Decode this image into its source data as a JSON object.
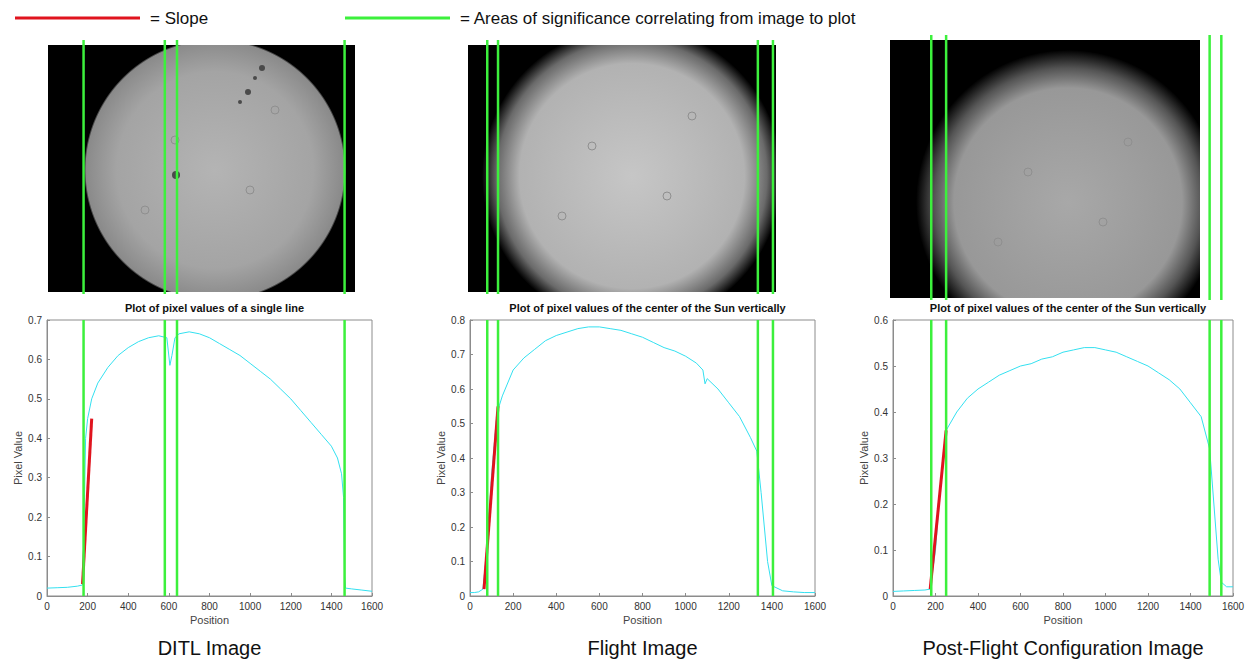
{
  "figure_key": [
    {
      "label": "= Slope",
      "color": "#e0141e"
    },
    {
      "label": "= Areas of significance correlating from image to plot",
      "color": "#3cf03c"
    }
  ],
  "chart_data": [
    {
      "type": "line",
      "title": "Plot of pixel values of a single line",
      "caption": "DITL Image",
      "xlabel": "Position",
      "ylabel": "Pixel Value",
      "xlim": [
        0,
        1600
      ],
      "xticks": [
        0,
        200,
        400,
        600,
        800,
        1000,
        1200,
        1400,
        1600
      ],
      "ylim": [
        0,
        0.7
      ],
      "yticks": [
        0,
        0.1,
        0.2,
        0.3,
        0.4,
        0.5,
        0.6,
        0.7
      ],
      "grid": false,
      "x": [
        0,
        50,
        100,
        150,
        175,
        180,
        190,
        200,
        220,
        250,
        300,
        350,
        400,
        450,
        500,
        550,
        590,
        605,
        615,
        630,
        650,
        700,
        750,
        800,
        850,
        900,
        950,
        1000,
        1050,
        1100,
        1150,
        1200,
        1250,
        1300,
        1350,
        1400,
        1430,
        1450,
        1460,
        1465,
        1470,
        1500,
        1550,
        1600
      ],
      "series": [
        {
          "color": "#33e0f0",
          "values": [
            0.02,
            0.021,
            0.022,
            0.025,
            0.028,
            0.12,
            0.4,
            0.45,
            0.5,
            0.54,
            0.58,
            0.61,
            0.63,
            0.645,
            0.655,
            0.66,
            0.655,
            0.585,
            0.61,
            0.655,
            0.665,
            0.67,
            0.665,
            0.655,
            0.64,
            0.625,
            0.61,
            0.59,
            0.57,
            0.55,
            0.525,
            0.5,
            0.47,
            0.44,
            0.41,
            0.38,
            0.35,
            0.31,
            0.25,
            0.05,
            0.02,
            0.018,
            0.015,
            0.012
          ]
        }
      ],
      "slope": {
        "color": "#e0141e",
        "x": [
          175,
          220
        ],
        "values": [
          0.03,
          0.45
        ]
      },
      "markers": {
        "color": "#3cf03c",
        "x": [
          180,
          580,
          640,
          1465
        ]
      }
    },
    {
      "type": "line",
      "title": "Plot of pixel values of the center of the Sun vertically",
      "caption": "Flight Image",
      "xlabel": "Position",
      "ylabel": "Pixel Value",
      "xlim": [
        0,
        1600
      ],
      "xticks": [
        0,
        200,
        400,
        600,
        800,
        1000,
        1200,
        1400,
        1600
      ],
      "ylim": [
        0,
        0.8
      ],
      "yticks": [
        0,
        0.1,
        0.2,
        0.3,
        0.4,
        0.5,
        0.6,
        0.7,
        0.8
      ],
      "grid": false,
      "x": [
        0,
        20,
        40,
        60,
        80,
        100,
        125,
        150,
        200,
        250,
        300,
        350,
        400,
        450,
        500,
        550,
        600,
        650,
        700,
        750,
        800,
        850,
        900,
        950,
        1000,
        1050,
        1080,
        1090,
        1100,
        1150,
        1200,
        1250,
        1300,
        1330,
        1350,
        1380,
        1400,
        1450,
        1500,
        1550,
        1600
      ],
      "series": [
        {
          "color": "#33e0f0",
          "values": [
            0.01,
            0.01,
            0.012,
            0.02,
            0.15,
            0.35,
            0.53,
            0.58,
            0.655,
            0.69,
            0.715,
            0.74,
            0.755,
            0.765,
            0.775,
            0.78,
            0.78,
            0.775,
            0.77,
            0.76,
            0.75,
            0.735,
            0.72,
            0.71,
            0.695,
            0.675,
            0.655,
            0.615,
            0.63,
            0.6,
            0.56,
            0.52,
            0.46,
            0.42,
            0.3,
            0.1,
            0.03,
            0.015,
            0.012,
            0.01,
            0.01
          ]
        }
      ],
      "slope": {
        "color": "#e0141e",
        "x": [
          65,
          130
        ],
        "values": [
          0.02,
          0.55
        ]
      },
      "markers": {
        "color": "#3cf03c",
        "x": [
          80,
          130,
          1335,
          1405
        ]
      }
    },
    {
      "type": "line",
      "title": "Plot of pixel values of the center of the Sun vertically",
      "caption": "Post-Flight Configuration Image",
      "xlabel": "Position",
      "ylabel": "Pixel Value",
      "xlim": [
        0,
        1600
      ],
      "xticks": [
        0,
        200,
        400,
        600,
        800,
        1000,
        1200,
        1400,
        1600
      ],
      "ylim": [
        0,
        0.6
      ],
      "yticks": [
        0,
        0.1,
        0.2,
        0.3,
        0.4,
        0.5,
        0.6
      ],
      "grid": false,
      "x": [
        0,
        50,
        100,
        150,
        175,
        200,
        225,
        250,
        300,
        350,
        400,
        450,
        500,
        550,
        600,
        650,
        700,
        750,
        800,
        850,
        900,
        950,
        1000,
        1050,
        1100,
        1150,
        1200,
        1250,
        1300,
        1350,
        1400,
        1450,
        1490,
        1510,
        1530,
        1545,
        1570,
        1600
      ],
      "series": [
        {
          "color": "#33e0f0",
          "values": [
            0.01,
            0.011,
            0.012,
            0.013,
            0.015,
            0.1,
            0.25,
            0.36,
            0.4,
            0.43,
            0.45,
            0.465,
            0.48,
            0.49,
            0.5,
            0.505,
            0.515,
            0.52,
            0.53,
            0.535,
            0.54,
            0.54,
            0.535,
            0.53,
            0.52,
            0.51,
            0.5,
            0.485,
            0.47,
            0.45,
            0.42,
            0.39,
            0.32,
            0.2,
            0.08,
            0.03,
            0.02,
            0.02
          ]
        }
      ],
      "slope": {
        "color": "#e0141e",
        "x": [
          175,
          250
        ],
        "values": [
          0.015,
          0.36
        ]
      },
      "markers": {
        "color": "#3cf03c",
        "x": [
          180,
          250,
          1490,
          1545
        ]
      }
    }
  ]
}
